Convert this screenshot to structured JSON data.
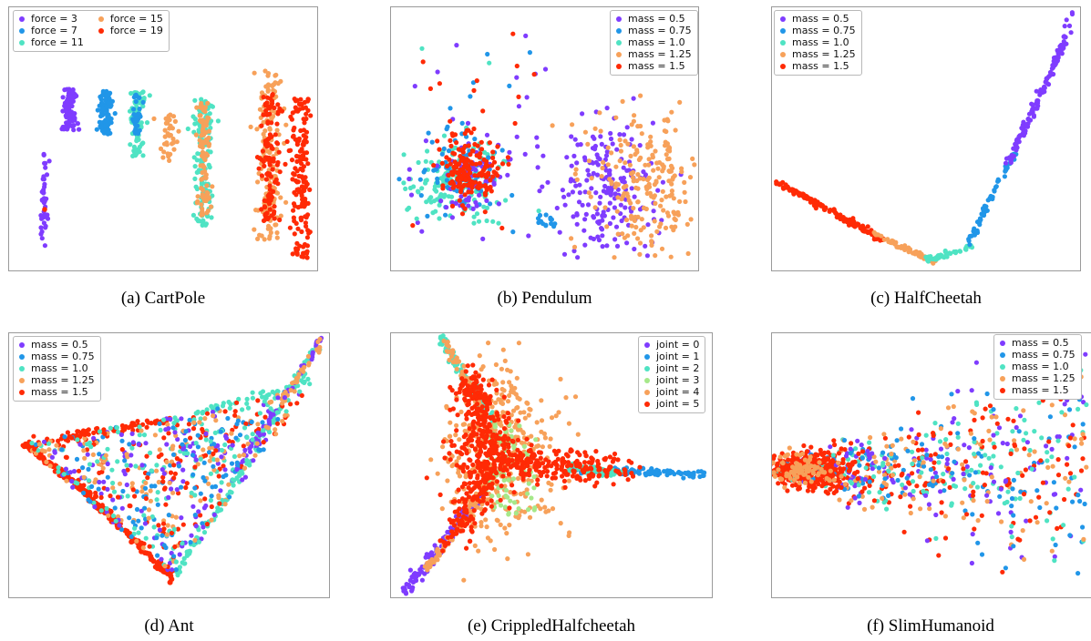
{
  "colors": {
    "c0": "#7f3cff",
    "c1": "#2196e8",
    "c2": "#4fe3c3",
    "c3": "#a6e88a",
    "c4": "#f7a15a",
    "c5": "#ff2a05"
  },
  "panels": [
    {
      "id": "cartpole",
      "caption": "(a) CartPole",
      "legend": [
        "force = 3",
        "force = 7",
        "force = 11",
        "force = 15",
        "force = 19"
      ],
      "legend_colors": [
        "c0",
        "c1",
        "c2",
        "c4",
        "c5"
      ],
      "legend_columns": 2,
      "legend_placement": "top-left"
    },
    {
      "id": "pendulum",
      "caption": "(b) Pendulum",
      "legend": [
        "mass = 0.5",
        "mass = 0.75",
        "mass = 1.0",
        "mass = 1.25",
        "mass = 1.5"
      ],
      "legend_colors": [
        "c0",
        "c1",
        "c2",
        "c4",
        "c5"
      ],
      "legend_columns": 1,
      "legend_placement": "top-right"
    },
    {
      "id": "halfcheetah",
      "caption": "(c) HalfCheetah",
      "legend": [
        "mass = 0.5",
        "mass = 0.75",
        "mass = 1.0",
        "mass = 1.25",
        "mass = 1.5"
      ],
      "legend_colors": [
        "c0",
        "c1",
        "c2",
        "c4",
        "c5"
      ],
      "legend_columns": 1,
      "legend_placement": "top-left"
    },
    {
      "id": "ant",
      "caption": "(d) Ant",
      "legend": [
        "mass = 0.5",
        "mass = 0.75",
        "mass = 1.0",
        "mass = 1.25",
        "mass = 1.5"
      ],
      "legend_colors": [
        "c0",
        "c1",
        "c2",
        "c4",
        "c5"
      ],
      "legend_columns": 1,
      "legend_placement": "top-left"
    },
    {
      "id": "crippled",
      "caption": "(e) CrippledHalfcheetah",
      "legend": [
        "joint = 0",
        "joint = 1",
        "joint = 2",
        "joint = 3",
        "joint = 4",
        "joint = 5"
      ],
      "legend_colors": [
        "c0",
        "c1",
        "c2",
        "c3",
        "c4",
        "c5"
      ],
      "legend_columns": 1,
      "legend_placement": "top-right"
    },
    {
      "id": "slimhumanoid",
      "caption": "(f) SlimHumanoid",
      "legend": [
        "mass = 0.5",
        "mass = 0.75",
        "mass = 1.0",
        "mass = 1.25",
        "mass = 1.5"
      ],
      "legend_colors": [
        "c0",
        "c1",
        "c2",
        "c4",
        "c5"
      ],
      "legend_columns": 1,
      "legend_placement": "top-right"
    }
  ],
  "chart_data": [
    {
      "type": "scatter",
      "title": "(a) CartPole",
      "series": [
        {
          "name": "force = 3",
          "color": "c0"
        },
        {
          "name": "force = 7",
          "color": "c1"
        },
        {
          "name": "force = 11",
          "color": "c2"
        },
        {
          "name": "force = 15",
          "color": "c4"
        },
        {
          "name": "force = 19",
          "color": "c5"
        }
      ],
      "axes_visible": false,
      "grid": false,
      "legend": "top-left"
    },
    {
      "type": "scatter",
      "title": "(b) Pendulum",
      "series": [
        {
          "name": "mass = 0.5",
          "color": "c0"
        },
        {
          "name": "mass = 0.75",
          "color": "c1"
        },
        {
          "name": "mass = 1.0",
          "color": "c2"
        },
        {
          "name": "mass = 1.25",
          "color": "c4"
        },
        {
          "name": "mass = 1.5",
          "color": "c5"
        }
      ],
      "axes_visible": false,
      "grid": false,
      "legend": "top-right"
    },
    {
      "type": "scatter",
      "title": "(c) HalfCheetah",
      "series": [
        {
          "name": "mass = 0.5",
          "color": "c0"
        },
        {
          "name": "mass = 0.75",
          "color": "c1"
        },
        {
          "name": "mass = 1.0",
          "color": "c2"
        },
        {
          "name": "mass = 1.25",
          "color": "c4"
        },
        {
          "name": "mass = 1.5",
          "color": "c5"
        }
      ],
      "axes_visible": false,
      "grid": false,
      "legend": "top-left"
    },
    {
      "type": "scatter",
      "title": "(d) Ant",
      "series": [
        {
          "name": "mass = 0.5",
          "color": "c0"
        },
        {
          "name": "mass = 0.75",
          "color": "c1"
        },
        {
          "name": "mass = 1.0",
          "color": "c2"
        },
        {
          "name": "mass = 1.25",
          "color": "c4"
        },
        {
          "name": "mass = 1.5",
          "color": "c5"
        }
      ],
      "axes_visible": false,
      "grid": false,
      "legend": "top-left"
    },
    {
      "type": "scatter",
      "title": "(e) CrippledHalfcheetah",
      "series": [
        {
          "name": "joint = 0",
          "color": "c0"
        },
        {
          "name": "joint = 1",
          "color": "c1"
        },
        {
          "name": "joint = 2",
          "color": "c2"
        },
        {
          "name": "joint = 3",
          "color": "c3"
        },
        {
          "name": "joint = 4",
          "color": "c4"
        },
        {
          "name": "joint = 5",
          "color": "c5"
        }
      ],
      "axes_visible": false,
      "grid": false,
      "legend": "top-right"
    },
    {
      "type": "scatter",
      "title": "(f) SlimHumanoid",
      "series": [
        {
          "name": "mass = 0.5",
          "color": "c0"
        },
        {
          "name": "mass = 0.75",
          "color": "c1"
        },
        {
          "name": "mass = 1.0",
          "color": "c2"
        },
        {
          "name": "mass = 1.25",
          "color": "c4"
        },
        {
          "name": "mass = 1.5",
          "color": "c5"
        }
      ],
      "axes_visible": false,
      "grid": false,
      "legend": "top-right"
    }
  ]
}
